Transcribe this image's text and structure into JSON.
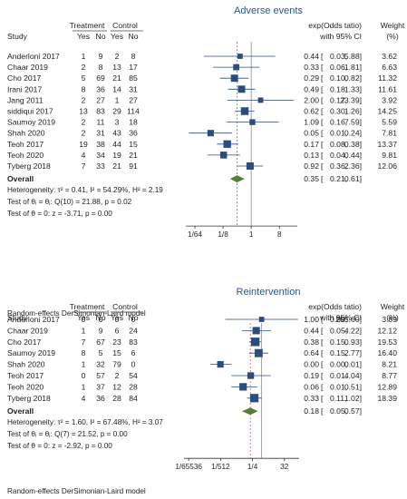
{
  "colors": {
    "title": "#2e5590",
    "marker": "#2b4c7e",
    "ci": "#2b4c7e",
    "diamond": "#5a7d3a",
    "ref_line": "#9a9a9a",
    "overall_line": "#c0504d"
  },
  "panels": [
    {
      "title": "Adverse events",
      "headers": {
        "study": "Study",
        "treatment": "Treatment",
        "control": "Control",
        "yes": "Yes",
        "no": "No",
        "effect_l1": "exp(Odds tatio)",
        "effect_l2": "with 95% CI",
        "weight_l1": "Weight",
        "weight_l2": "(%)"
      },
      "studies": [
        {
          "name": "Anderloni 2017",
          "t_yes": "1",
          "t_no": "9",
          "c_yes": "2",
          "c_no": "8",
          "est": "0.44",
          "lo": "0.03,",
          "hi": "5.88]",
          "weight": "3.62"
        },
        {
          "name": "Chaar 2019",
          "t_yes": "2",
          "t_no": "8",
          "c_yes": "13",
          "c_no": "17",
          "est": "0.33",
          "lo": "0.06,",
          "hi": "1.81]",
          "weight": "6.63"
        },
        {
          "name": "Cho 2017",
          "t_yes": "5",
          "t_no": "69",
          "c_yes": "21",
          "c_no": "85",
          "est": "0.29",
          "lo": "0.10,",
          "hi": "0.82]",
          "weight": "11.32"
        },
        {
          "name": "Irani 2017",
          "t_yes": "8",
          "t_no": "36",
          "c_yes": "14",
          "c_no": "31",
          "est": "0.49",
          "lo": "0.18,",
          "hi": "1.33]",
          "weight": "11.61"
        },
        {
          "name": "Jang 2011",
          "t_yes": "2",
          "t_no": "27",
          "c_yes": "1",
          "c_no": "27",
          "est": "2.00",
          "lo": "0.17,",
          "hi": "23.39]",
          "weight": "3.92"
        },
        {
          "name": "siddiqui 2017",
          "t_yes": "13",
          "t_no": "83",
          "c_yes": "29",
          "c_no": "114",
          "est": "0.62",
          "lo": "0.30,",
          "hi": "1.26]",
          "weight": "14.25"
        },
        {
          "name": "Saumoy 2019",
          "t_yes": "2",
          "t_no": "11",
          "c_yes": "3",
          "c_no": "18",
          "est": "1.09",
          "lo": "0.16,",
          "hi": "7.59]",
          "weight": "5.59"
        },
        {
          "name": "Shah 2020",
          "t_yes": "2",
          "t_no": "31",
          "c_yes": "43",
          "c_no": "36",
          "est": "0.05",
          "lo": "0.01,",
          "hi": "0.24]",
          "weight": "7.81"
        },
        {
          "name": "Teoh 2017",
          "t_yes": "19",
          "t_no": "38",
          "c_yes": "44",
          "c_no": "15",
          "est": "0.17",
          "lo": "0.08,",
          "hi": "0.38]",
          "weight": "13.37"
        },
        {
          "name": "Teoh 2020",
          "t_yes": "4",
          "t_no": "34",
          "c_yes": "19",
          "c_no": "21",
          "est": "0.13",
          "lo": "0.04,",
          "hi": "0.44]",
          "weight": "9.81"
        },
        {
          "name": "Tyberg 2018",
          "t_yes": "7",
          "t_no": "33",
          "c_yes": "21",
          "c_no": "91",
          "est": "0.92",
          "lo": "0.36,",
          "hi": "2.36]",
          "weight": "12.06"
        }
      ],
      "overall": {
        "label": "Overall",
        "est": "0.35",
        "lo": "0.21,",
        "hi": "0.61]"
      },
      "stats": [
        "Heterogeneity: τ² = 0.41, I² = 54.29%, H² = 2.19",
        "Test of θᵢ = θⱼ: Q(10) = 21.88, p = 0.02",
        "Test of θ = 0: z = -3.71, p = 0.00"
      ],
      "x_ticks": [
        {
          "label": "1/64",
          "value": 0.015625
        },
        {
          "label": "1/8",
          "value": 0.125
        },
        {
          "label": "1",
          "value": 1
        },
        {
          "label": "8",
          "value": 8
        }
      ],
      "footer": "Random-effects DerSimonian-Laird model"
    },
    {
      "title": "Reintervention",
      "headers": {
        "study": "Study",
        "treatment": "Treatment",
        "control": "Control",
        "yes": "Yes",
        "no": "No",
        "effect_l1": "exp(Odds tatio)",
        "effect_l2": "with 95% CI",
        "weight_l1": "Weight",
        "weight_l2": "(%)"
      },
      "studies": [
        {
          "name": "Anderloni 2017",
          "t_yes": "0",
          "t_no": "0",
          "c_yes": "0",
          "c_no": "0",
          "est": "1.00",
          "lo": "0.00,",
          "hi": "255.60]",
          "weight": "3.69"
        },
        {
          "name": "Chaar 2019",
          "t_yes": "1",
          "t_no": "9",
          "c_yes": "6",
          "c_no": "24",
          "est": "0.44",
          "lo": "0.05,",
          "hi": "4.22]",
          "weight": "12.12"
        },
        {
          "name": "Cho 2017",
          "t_yes": "7",
          "t_no": "67",
          "c_yes": "23",
          "c_no": "83",
          "est": "0.38",
          "lo": "0.15,",
          "hi": "0.93]",
          "weight": "19.53"
        },
        {
          "name": "Saumoy 2019",
          "t_yes": "8",
          "t_no": "5",
          "c_yes": "15",
          "c_no": "6",
          "est": "0.64",
          "lo": "0.15,",
          "hi": "2.77]",
          "weight": "16.40"
        },
        {
          "name": "Shah 2020",
          "t_yes": "1",
          "t_no": "32",
          "c_yes": "79",
          "c_no": "0",
          "est": "0.00",
          "lo": "0.00,",
          "hi": "0.01]",
          "weight": "8.21"
        },
        {
          "name": "Teoh 2017",
          "t_yes": "0",
          "t_no": "57",
          "c_yes": "2",
          "c_no": "54",
          "est": "0.19",
          "lo": "0.01,",
          "hi": "4.04]",
          "weight": "8.77"
        },
        {
          "name": "Teoh 2020",
          "t_yes": "1",
          "t_no": "37",
          "c_yes": "12",
          "c_no": "28",
          "est": "0.06",
          "lo": "0.01,",
          "hi": "0.51]",
          "weight": "12.89"
        },
        {
          "name": "Tyberg 2018",
          "t_yes": "4",
          "t_no": "36",
          "c_yes": "28",
          "c_no": "84",
          "est": "0.33",
          "lo": "0.11,",
          "hi": "1.02]",
          "weight": "18.39"
        }
      ],
      "overall": {
        "label": "Overall",
        "est": "0.18",
        "lo": "0.05,",
        "hi": "0.57]"
      },
      "stats": [
        "Heterogeneity: τ² = 1.60, I² = 67.48%, H² = 3.07",
        "Test of θᵢ = θⱼ: Q(7) = 21.52, p = 0.00",
        "Test of θ = 0: z = -2.92, p = 0.00"
      ],
      "x_ticks": [
        {
          "label": "1/65536",
          "value": 1.52587890625e-05
        },
        {
          "label": "1/512",
          "value": 0.001953125
        },
        {
          "label": "1/4",
          "value": 0.25
        },
        {
          "label": "32",
          "value": 32
        }
      ],
      "footer": "Random-effects DerSimonian-Laird model"
    }
  ],
  "chart_data": [
    {
      "type": "forest",
      "title": "Adverse events",
      "x_scale": "log2",
      "xlim": [
        0.008,
        30
      ],
      "reference_line": 1,
      "categories": [
        "Anderloni 2017",
        "Chaar 2019",
        "Cho 2017",
        "Irani 2017",
        "Jang 2011",
        "siddiqui 2017",
        "Saumoy 2019",
        "Shah 2020",
        "Teoh 2017",
        "Teoh 2020",
        "Tyberg 2018"
      ],
      "estimate": [
        0.44,
        0.33,
        0.29,
        0.49,
        2.0,
        0.62,
        1.09,
        0.05,
        0.17,
        0.13,
        0.92
      ],
      "ci_low": [
        0.03,
        0.06,
        0.1,
        0.18,
        0.17,
        0.3,
        0.16,
        0.01,
        0.08,
        0.04,
        0.36
      ],
      "ci_high": [
        5.88,
        1.81,
        0.82,
        1.33,
        23.39,
        1.26,
        7.59,
        0.24,
        0.38,
        0.44,
        2.36
      ],
      "weight": [
        3.62,
        6.63,
        11.32,
        11.61,
        3.92,
        14.25,
        5.59,
        7.81,
        13.37,
        9.81,
        12.06
      ],
      "overall": {
        "estimate": 0.35,
        "ci_low": 0.21,
        "ci_high": 0.61
      }
    },
    {
      "type": "forest",
      "title": "Reintervention",
      "x_scale": "log2",
      "xlim": [
        7.5e-06,
        300
      ],
      "reference_line": 1,
      "categories": [
        "Anderloni 2017",
        "Chaar 2019",
        "Cho 2017",
        "Saumoy 2019",
        "Shah 2020",
        "Teoh 2017",
        "Teoh 2020",
        "Tyberg 2018"
      ],
      "estimate": [
        1.0,
        0.44,
        0.38,
        0.64,
        0.0019,
        0.19,
        0.06,
        0.33
      ],
      "ci_low": [
        0.004,
        0.05,
        0.15,
        0.15,
        0.0004,
        0.01,
        0.01,
        0.11
      ],
      "ci_high": [
        255.6,
        4.22,
        0.93,
        2.77,
        0.01,
        4.04,
        0.51,
        1.02
      ],
      "weight": [
        3.69,
        12.12,
        19.53,
        16.4,
        8.21,
        8.77,
        12.89,
        18.39
      ],
      "overall": {
        "estimate": 0.18,
        "ci_low": 0.05,
        "ci_high": 0.57
      }
    }
  ]
}
